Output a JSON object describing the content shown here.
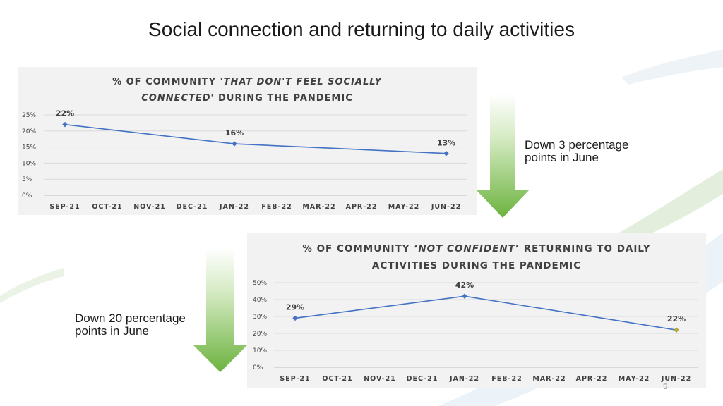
{
  "slide": {
    "title": "Social connection and returning to daily activities",
    "page_number": "5"
  },
  "notes": {
    "chart1_note": "Down 3 percentage points in June",
    "chart2_note": "Down 20 percentage points in June"
  },
  "colors": {
    "line": "#4472c4",
    "marker": "#4472c4",
    "last_marker_chart2": "#b5b03a",
    "arrow_light": "#c9e3b0",
    "arrow_dark": "#6cb33f",
    "panel_bg": "#f2f2f2"
  },
  "chart_data": [
    {
      "type": "line",
      "title_parts": [
        "% OF COMMUNITY ",
        "'THAT DON'T FEEL SOCIALLY CONNECTED'",
        " DURING THE PANDEMIC"
      ],
      "categories": [
        "SEP-21",
        "OCT-21",
        "NOV-21",
        "DEC-21",
        "JAN-22",
        "FEB-22",
        "MAR-22",
        "APR-22",
        "MAY-22",
        "JUN-22"
      ],
      "points": [
        {
          "category": "SEP-21",
          "value": 22,
          "label": "22%"
        },
        {
          "category": "JAN-22",
          "value": 16,
          "label": "16%"
        },
        {
          "category": "JUN-22",
          "value": 13,
          "label": "13%"
        }
      ],
      "y_ticks": [
        "0%",
        "5%",
        "10%",
        "15%",
        "20%",
        "25%"
      ],
      "ylim": [
        0,
        25
      ],
      "grid": true
    },
    {
      "type": "line",
      "title_parts": [
        "% OF COMMUNITY ‘",
        "NOT CONFIDENT",
        "’ RETURNING TO DAILY ACTIVITIES  DURING THE  PANDEMIC"
      ],
      "categories": [
        "SEP-21",
        "OCT-21",
        "NOV-21",
        "DEC-21",
        "JAN-22",
        "FEB-22",
        "MAR-22",
        "APR-22",
        "MAY-22",
        "JUN-22"
      ],
      "points": [
        {
          "category": "SEP-21",
          "value": 29,
          "label": "29%"
        },
        {
          "category": "JAN-22",
          "value": 42,
          "label": "42%"
        },
        {
          "category": "JUN-22",
          "value": 22,
          "label": "22%"
        }
      ],
      "y_ticks": [
        "0%",
        "10%",
        "20%",
        "30%",
        "40%",
        "50%"
      ],
      "ylim": [
        0,
        50
      ],
      "grid": true
    }
  ]
}
